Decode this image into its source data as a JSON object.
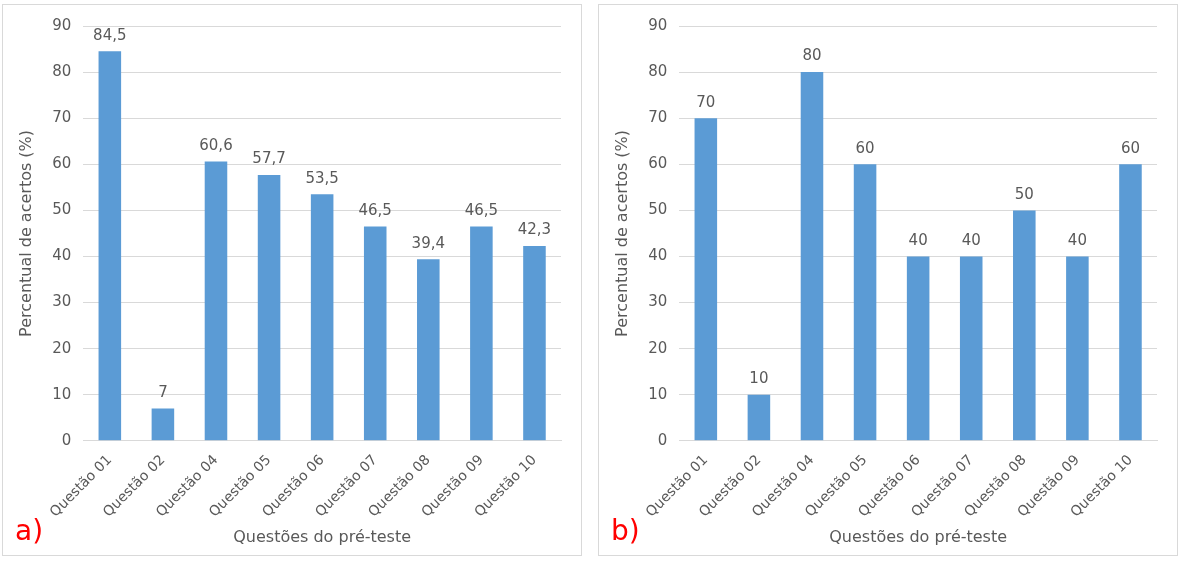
{
  "chart_data": [
    {
      "type": "bar",
      "categories": [
        "Questão 01",
        "Questão 02",
        "Questão 04",
        "Questão 05",
        "Questão 06",
        "Questão 07",
        "Questão 08",
        "Questão 09",
        "Questão 10"
      ],
      "values": [
        84.5,
        7,
        60.6,
        57.7,
        53.5,
        46.5,
        39.4,
        46.5,
        42.3
      ],
      "value_labels": [
        "84,5",
        "7",
        "60,6",
        "57,7",
        "53,5",
        "46,5",
        "39,4",
        "46,5",
        "42,3"
      ],
      "color": "#5b9bd5",
      "xlabel": "Questões do pré-teste",
      "ylabel": "Percentual de acertos (%)",
      "ylim": [
        0,
        90
      ],
      "yticks": [
        0,
        10,
        20,
        30,
        40,
        50,
        60,
        70,
        80,
        90
      ],
      "grid": "y",
      "legend": false,
      "annotations": [
        "a)"
      ]
    },
    {
      "type": "bar",
      "categories": [
        "Questão 01",
        "Questão 02",
        "Questão 04",
        "Questão 05",
        "Questão 06",
        "Questão 07",
        "Questão 08",
        "Questão 09",
        "Questão 10"
      ],
      "values": [
        70,
        10,
        80,
        60,
        40,
        40,
        50,
        40,
        60
      ],
      "color": "#5b9bd5",
      "data_labels": true,
      "xlabel": "Questões do pré-teste",
      "ylabel": "Percentual de acertos (%)",
      "ylim": [
        0,
        90
      ],
      "yticks": [
        0,
        10,
        20,
        30,
        40,
        50,
        60,
        70,
        80,
        90
      ],
      "grid": "y",
      "legend": false,
      "annotations": [
        "b)"
      ]
    }
  ]
}
